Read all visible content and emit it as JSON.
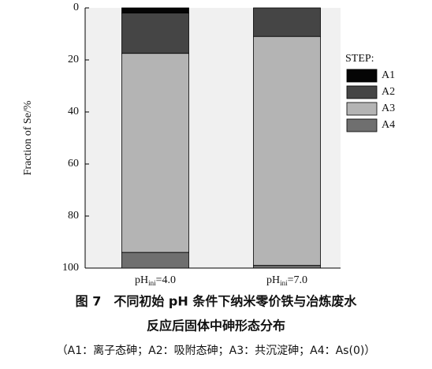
{
  "chart_data": {
    "type": "stacked_bar",
    "y_label": "Fraction of Se/%",
    "categories": [
      "pHini=4.0",
      "pHini=7.0"
    ],
    "series": [
      {
        "name": "A1",
        "color": "#050505",
        "values": [
          2,
          0
        ]
      },
      {
        "name": "A2",
        "color": "#454545",
        "values": [
          15.5,
          11
        ]
      },
      {
        "name": "A3",
        "color": "#b4b4b4",
        "values": [
          76.5,
          88
        ]
      },
      {
        "name": "A4",
        "color": "#6f6f6f",
        "values": [
          6,
          1
        ]
      }
    ],
    "ylim": [
      0,
      100
    ],
    "yticks": [
      0,
      20,
      40,
      60,
      80,
      100
    ],
    "y_inverted": true,
    "legend_title": "STEP:",
    "legend": "right",
    "caption": [
      "图 7　不同初始 pH 条件下纳米零价铁与冶炼废水",
      "反应后固体中砷形态分布",
      "（A1：离子态砷；A2：吸附态砷；A3：共沉淀砷；A4：As(0)）"
    ]
  }
}
